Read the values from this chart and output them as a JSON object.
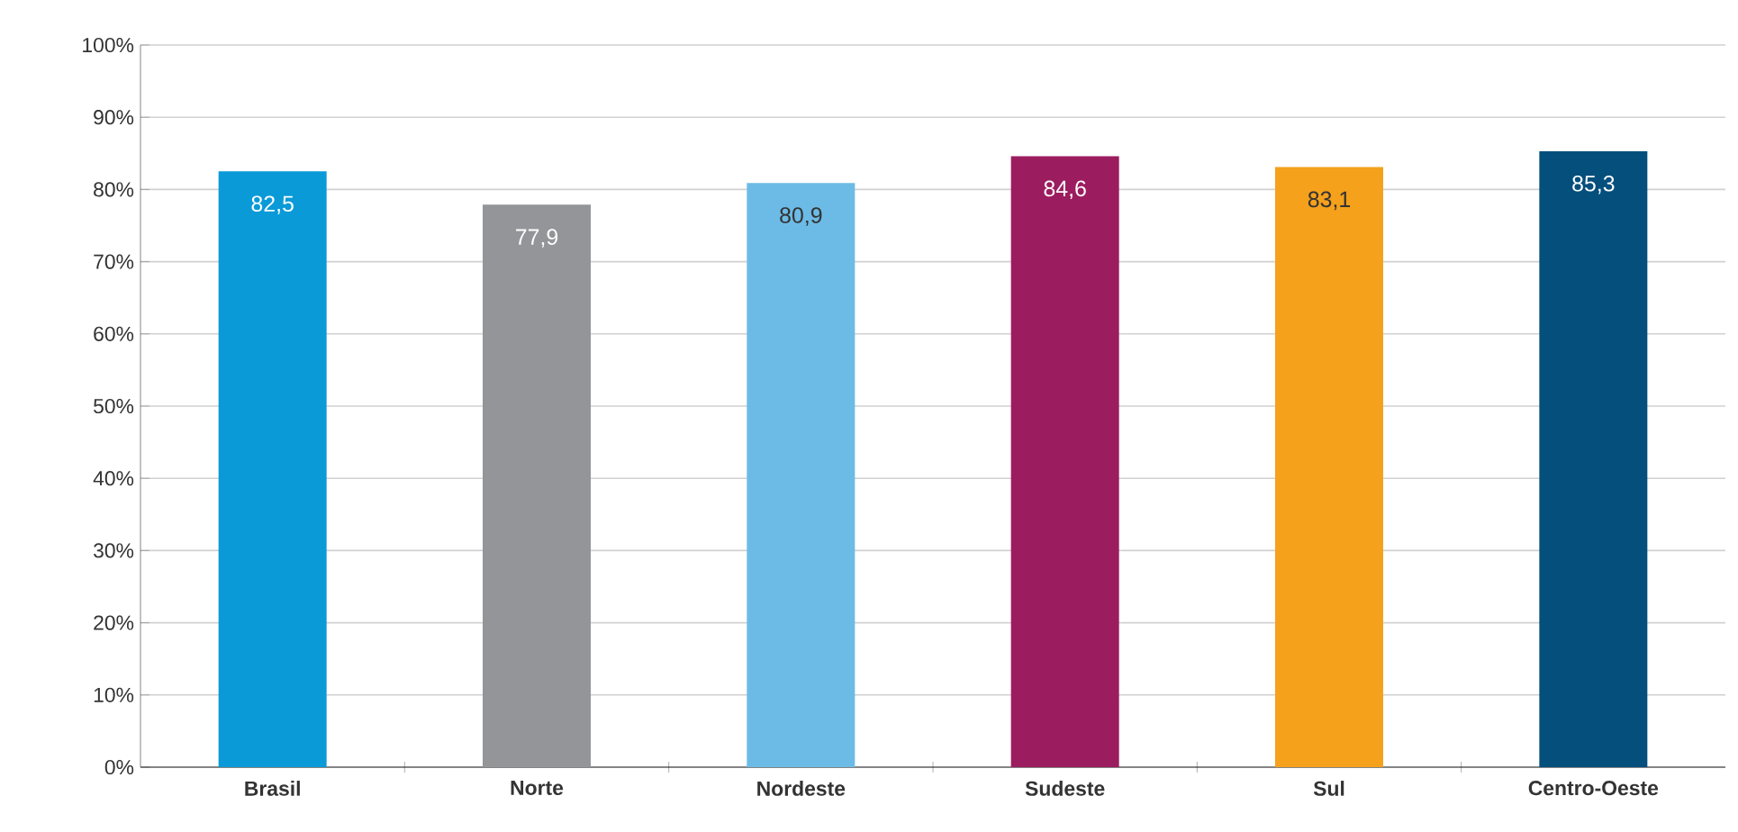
{
  "chart_data": {
    "type": "bar",
    "categories": [
      "Brasil",
      "Norte",
      "Nordeste",
      "Sudeste",
      "Sul",
      "Centro-Oeste"
    ],
    "values": [
      82.5,
      77.9,
      80.9,
      84.6,
      83.1,
      85.3
    ],
    "colors": [
      "#0a9ad7",
      "#939598",
      "#6cbbe6",
      "#9b1d5f",
      "#f5a11c",
      "#054f7d"
    ],
    "value_labels": [
      "82,5",
      "77,9",
      "80,9",
      "84,6",
      "83,1",
      "85,3"
    ],
    "ylim": [
      0,
      100
    ],
    "yticks": [
      {
        "value": 0,
        "label": "0%"
      },
      {
        "value": 10,
        "label": "10%"
      },
      {
        "value": 20,
        "label": "20%"
      },
      {
        "value": 30,
        "label": "30%"
      },
      {
        "value": 40,
        "label": "40%"
      },
      {
        "value": 50,
        "label": "50%"
      },
      {
        "value": 60,
        "label": "60%"
      },
      {
        "value": 70,
        "label": "70%"
      },
      {
        "value": 80,
        "label": "80%"
      },
      {
        "value": 90,
        "label": "90%"
      },
      {
        "value": 100,
        "label": "100%"
      }
    ],
    "grid": "y"
  }
}
